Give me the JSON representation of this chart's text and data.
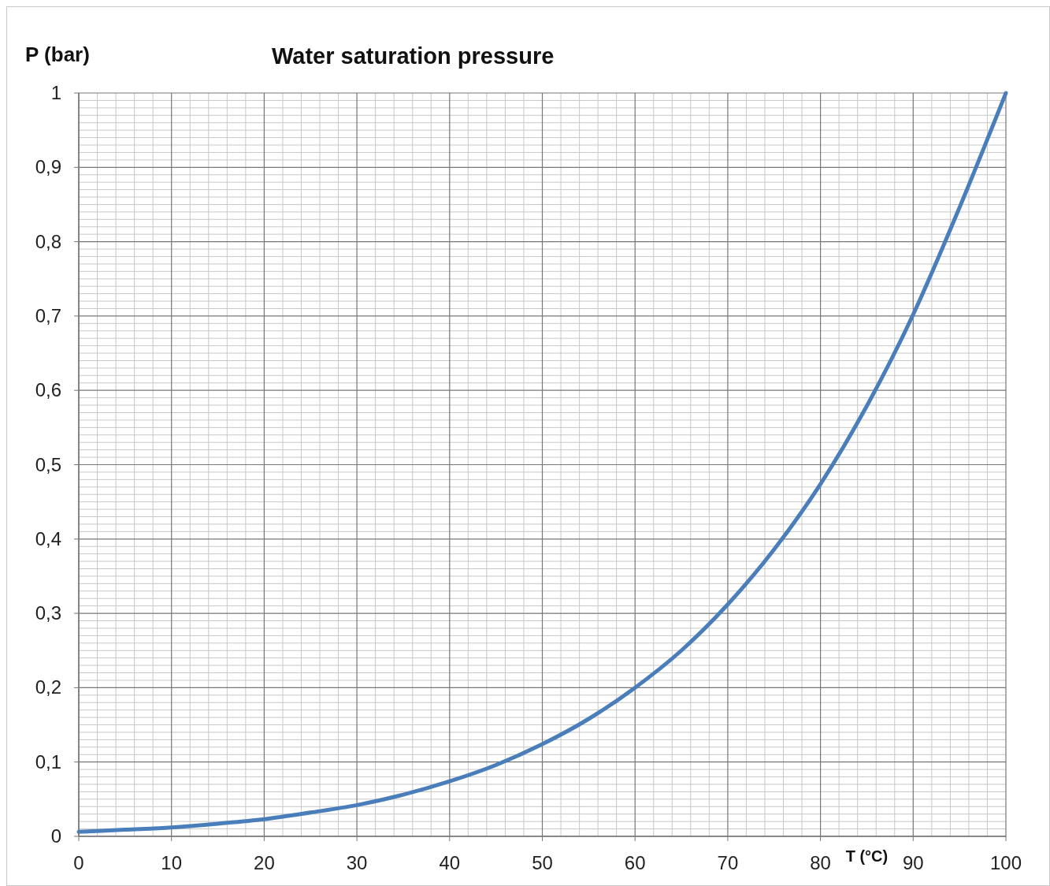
{
  "chart_data": {
    "type": "line",
    "title": "Water saturation pressure",
    "xlabel": "T (°C)",
    "ylabel": "P (bar)",
    "x": [
      0,
      5,
      10,
      15,
      20,
      25,
      30,
      35,
      40,
      45,
      50,
      55,
      60,
      65,
      70,
      75,
      80,
      85,
      90,
      95,
      100
    ],
    "series": [
      {
        "color": "#4a7ebb",
        "values": [
          0.006,
          0.009,
          0.012,
          0.017,
          0.023,
          0.032,
          0.042,
          0.056,
          0.074,
          0.096,
          0.124,
          0.158,
          0.2,
          0.25,
          0.312,
          0.386,
          0.474,
          0.579,
          0.702,
          0.846,
          1.0
        ]
      }
    ],
    "xlim": [
      0,
      100
    ],
    "xticks": [
      0,
      10,
      20,
      30,
      40,
      50,
      60,
      70,
      80,
      90,
      100
    ],
    "ylim": [
      0,
      1
    ],
    "yticks": [
      0,
      {
        "value": 0.1,
        "label": "0,1"
      },
      {
        "value": 0.2,
        "label": "0,2"
      },
      {
        "value": 0.3,
        "label": "0,3"
      },
      {
        "value": 0.4,
        "label": "0,4"
      },
      {
        "value": 0.5,
        "label": "0,5"
      },
      {
        "value": 0.6,
        "label": "0,6"
      },
      {
        "value": 0.7,
        "label": "0,7"
      },
      {
        "value": 0.8,
        "label": "0,8"
      },
      {
        "value": 0.9,
        "label": "0,9"
      },
      1
    ],
    "grid": true,
    "marker": "none",
    "line_style": "solid"
  }
}
